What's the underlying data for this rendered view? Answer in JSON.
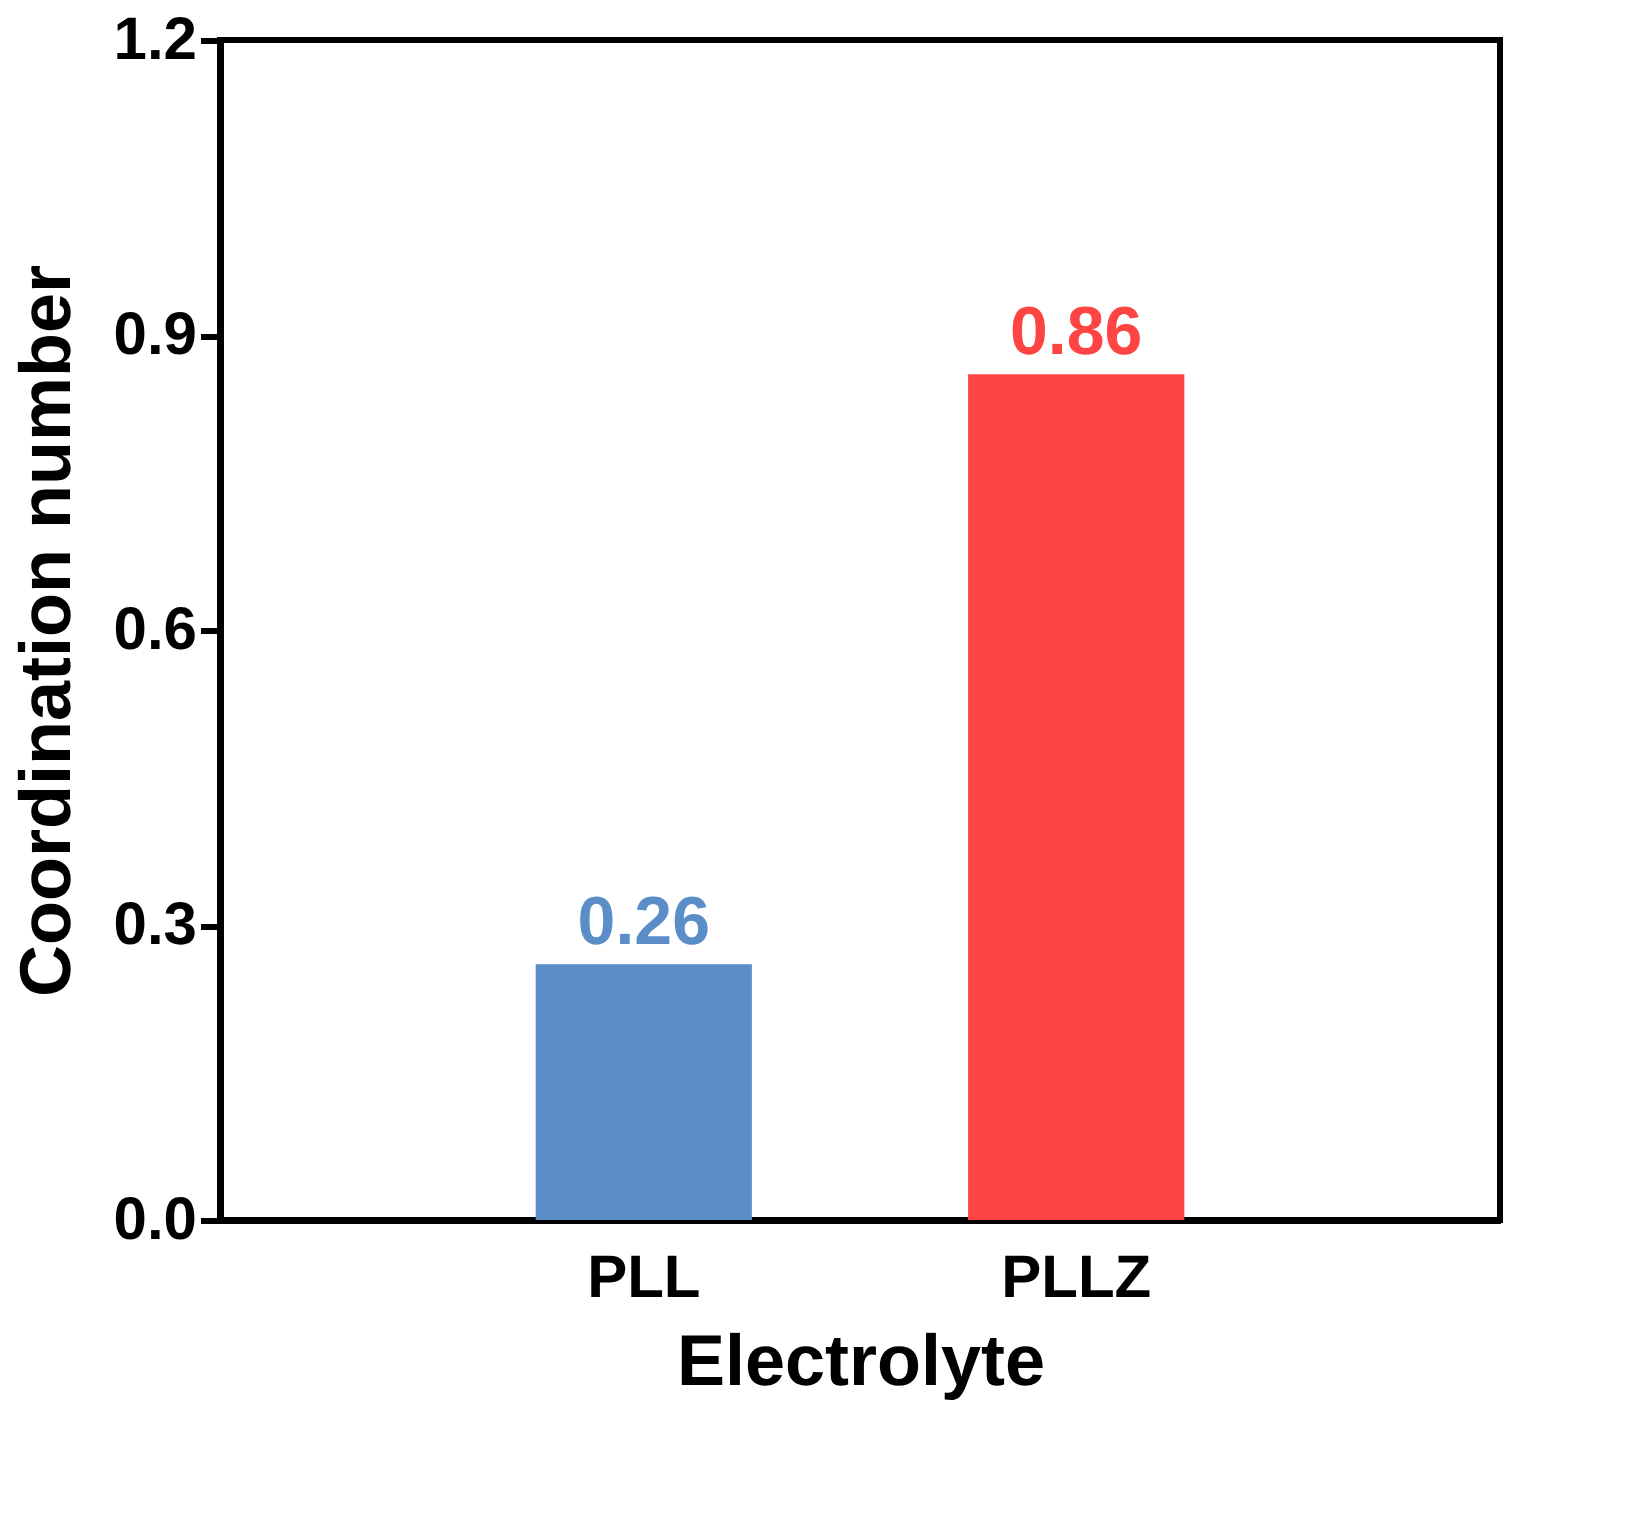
{
  "chart_data": {
    "type": "bar",
    "xlabel": "Electrolyte",
    "ylabel": "Coordination number",
    "categories": [
      "PLL",
      "PLLZ"
    ],
    "values": [
      0.26,
      0.86
    ],
    "colors": [
      "#5b8ec9",
      "#ff4444"
    ],
    "ylim": [
      0,
      1.2
    ],
    "yticks": [
      {
        "value": 0,
        "label": "0.0"
      },
      0.3,
      0.6,
      0.9,
      1.2
    ],
    "data_labels": true,
    "grid": false
  }
}
